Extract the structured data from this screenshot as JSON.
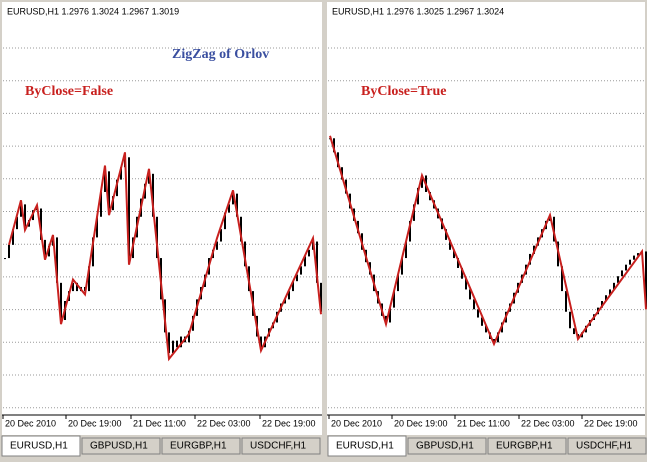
{
  "title": "ZigZag of Orlov",
  "panels": [
    {
      "header": "EURUSD,H1  1.2976 1.3024 1.2967 1.3019",
      "label": "ByClose=False",
      "dates": [
        "20 Dec 2010",
        "20 Dec 19:00",
        "21 Dec 11:00",
        "22 Dec 03:00",
        "22 Dec 19:00"
      ],
      "tabs": [
        "EURUSD,H1",
        "GBPUSD,H1",
        "EURGBP,H1",
        "USDCHF,H1"
      ],
      "ylim": [
        1.3,
        1.35
      ],
      "closes": [
        1.319,
        1.3206,
        1.3225,
        1.324,
        1.3255,
        1.3228,
        1.3236,
        1.3248,
        1.325,
        1.3212,
        1.3192,
        1.3205,
        1.3215,
        1.316,
        1.3115,
        1.3138,
        1.315,
        1.316,
        1.315,
        1.3155,
        1.315,
        1.318,
        1.3215,
        1.324,
        1.327,
        1.3295,
        1.3248,
        1.3265,
        1.3285,
        1.33,
        1.3312,
        1.319,
        1.3215,
        1.324,
        1.3262,
        1.328,
        1.3292,
        1.324,
        1.319,
        1.314,
        1.31,
        1.3075,
        1.309,
        1.3082,
        1.3095,
        1.3088,
        1.3102,
        1.312,
        1.314,
        1.3155,
        1.317,
        1.319,
        1.32,
        1.321,
        1.3225,
        1.3245,
        1.3255,
        1.3268,
        1.324,
        1.321,
        1.318,
        1.315,
        1.312,
        1.3095,
        1.3082,
        1.3095,
        1.3105,
        1.3112,
        1.3125,
        1.3135,
        1.314,
        1.315,
        1.3162,
        1.317,
        1.318,
        1.3192,
        1.32,
        1.321,
        1.316,
        1.3125
      ],
      "zigzag_x": [
        1,
        4,
        5,
        8,
        10,
        12,
        14,
        17,
        20,
        25,
        26,
        30,
        31,
        36,
        41,
        46,
        53,
        57,
        64,
        77,
        79
      ],
      "zigzag": [
        1.3206,
        1.326,
        1.3224,
        1.3254,
        1.3188,
        1.3218,
        1.311,
        1.3164,
        1.3146,
        1.3302,
        1.3242,
        1.3318,
        1.3182,
        1.3298,
        1.3068,
        1.3098,
        1.3214,
        1.3272,
        1.3078,
        1.3214,
        1.3122
      ]
    },
    {
      "header": "EURUSD,H1  1.2976 1.3025 1.2967 1.3024",
      "label": "ByClose=True",
      "dates": [
        "20 Dec 2010",
        "20 Dec 19:00",
        "21 Dec 11:00",
        "22 Dec 03:00",
        "22 Dec 19:00"
      ],
      "tabs": [
        "EURUSD,H1",
        "GBPUSD,H1",
        "EURGBP,H1",
        "USDCHF,H1"
      ],
      "ylim": [
        1.3,
        1.35
      ],
      "closes": [
        1.3335,
        1.3318,
        1.33,
        1.3285,
        1.3268,
        1.325,
        1.3235,
        1.322,
        1.32,
        1.3185,
        1.317,
        1.315,
        1.3135,
        1.312,
        1.3112,
        1.313,
        1.315,
        1.317,
        1.319,
        1.321,
        1.3235,
        1.3255,
        1.3275,
        1.329,
        1.327,
        1.326,
        1.325,
        1.3238,
        1.3225,
        1.3212,
        1.32,
        1.319,
        1.3178,
        1.3165,
        1.3152,
        1.314,
        1.3128,
        1.3118,
        1.3108,
        1.31,
        1.3092,
        1.3088,
        1.31,
        1.3112,
        1.3125,
        1.3135,
        1.3148,
        1.316,
        1.317,
        1.3182,
        1.3195,
        1.3205,
        1.3215,
        1.3225,
        1.3235,
        1.324,
        1.321,
        1.318,
        1.315,
        1.3125,
        1.3105,
        1.3098,
        1.3094,
        1.31,
        1.3108,
        1.3115,
        1.3122,
        1.313,
        1.3138,
        1.3145,
        1.3152,
        1.316,
        1.3168,
        1.3175,
        1.3182,
        1.3188,
        1.3193,
        1.3196,
        1.3198,
        1.313
      ],
      "zigzag_x": [
        0,
        14,
        23,
        41,
        55,
        62,
        78,
        79
      ],
      "zigzag": [
        1.3338,
        1.311,
        1.329,
        1.3086,
        1.3242,
        1.3092,
        1.3198,
        1.3128
      ]
    }
  ]
}
